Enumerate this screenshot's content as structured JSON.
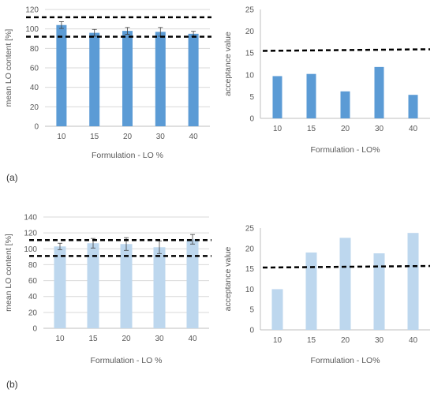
{
  "panels": {
    "a": "(a)",
    "b": "(b)"
  },
  "colors": {
    "series_a": "#5b9bd5",
    "series_b": "#bdd7ee",
    "gridline": "#d9d9d9",
    "axis": "#bfbfbf",
    "limit_line": "#000000",
    "error_bar": "#404040"
  },
  "chart_data": [
    {
      "id": "a-left",
      "type": "bar",
      "categories": [
        "10",
        "15",
        "20",
        "30",
        "40"
      ],
      "values": [
        104,
        96,
        98,
        97,
        95
      ],
      "error": [
        3.5,
        3.5,
        3.5,
        4.5,
        2.5
      ],
      "reference_lines": [
        112,
        92
      ],
      "xlabel": "Formulation - LO %",
      "ylabel": "mean LO content [%]",
      "ylim": [
        0,
        120
      ],
      "yticks": [
        0,
        20,
        40,
        60,
        80,
        100,
        120
      ],
      "grid": true
    },
    {
      "id": "a-right",
      "type": "bar",
      "categories": [
        "10",
        "15",
        "20",
        "30",
        "40"
      ],
      "values": [
        9.7,
        10.2,
        6.2,
        11.8,
        5.4
      ],
      "reference_lines": [
        15.5
      ],
      "xlabel": "Formulation - LO%",
      "ylabel": "acceptance value",
      "ylim": [
        0,
        25
      ],
      "yticks": [
        0,
        5,
        10,
        15,
        20,
        25
      ],
      "grid": false
    },
    {
      "id": "b-left",
      "type": "bar",
      "categories": [
        "10",
        "15",
        "20",
        "30",
        "40"
      ],
      "values": [
        103,
        107,
        106,
        102,
        112
      ],
      "error": [
        4,
        6,
        8,
        8,
        6
      ],
      "reference_lines": [
        111,
        91
      ],
      "xlabel": "Formulation - LO %",
      "ylabel": "mean LO content [%]",
      "ylim": [
        0,
        140
      ],
      "yticks": [
        0,
        20,
        40,
        60,
        80,
        100,
        120,
        140
      ],
      "grid": true
    },
    {
      "id": "b-right",
      "type": "bar",
      "categories": [
        "10",
        "15",
        "20",
        "30",
        "40"
      ],
      "values": [
        10,
        19,
        22.6,
        18.8,
        23.8
      ],
      "reference_lines": [
        15.3
      ],
      "xlabel": "Formulation - LO%",
      "ylabel": "acceptance value",
      "ylim": [
        0,
        25
      ],
      "yticks": [
        0,
        5,
        10,
        15,
        20,
        25
      ],
      "grid": false
    }
  ]
}
